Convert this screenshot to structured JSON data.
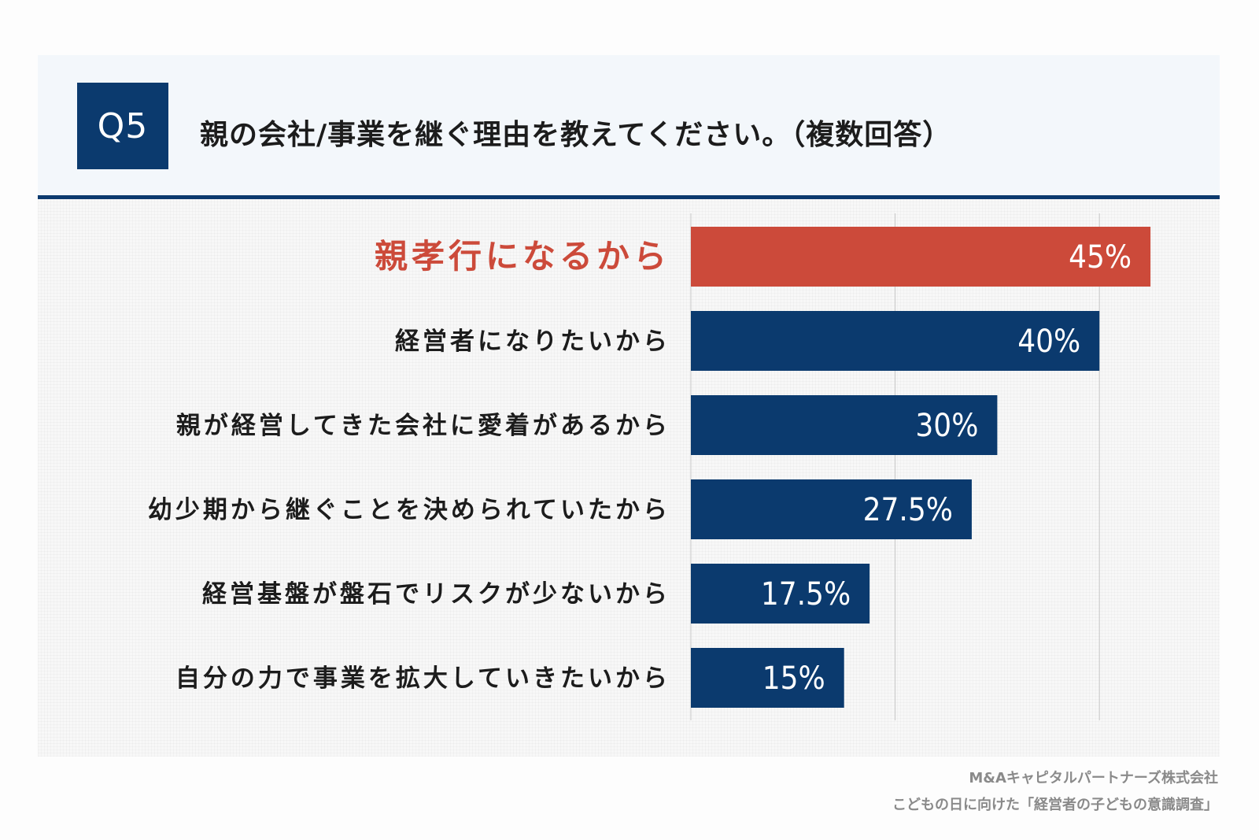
{
  "header": {
    "badge": "Q5",
    "question": "親の会社/事業を継ぐ理由を教えてください。（複数回答）"
  },
  "colors": {
    "navy": "#0b3a6e",
    "highlight": "#cc4a3a",
    "label_text": "#1c1c1c",
    "bar_text": "#ffffff",
    "grid": "#c8c8c8"
  },
  "chart_data": {
    "type": "bar",
    "orientation": "horizontal",
    "categories": [
      "親孝行になるから",
      "経営者になりたいから",
      "親が経営してきた会社に愛着があるから",
      "幼少期から継ぐことを決められていたから",
      "経営基盤が盤石でリスクが少ないから",
      "自分の力で事業を拡大していきたいから"
    ],
    "values": [
      45,
      40,
      30,
      27.5,
      17.5,
      15
    ],
    "value_labels": [
      "45%",
      "40%",
      "30%",
      "27.5%",
      "17.5%",
      "15%"
    ],
    "highlight_index": 0,
    "xlim": [
      0,
      50
    ],
    "gridlines": [
      0,
      20,
      40
    ],
    "grid": true
  },
  "footer": {
    "company": "M&Aキャピタルパートナーズ株式会社",
    "survey": "こどもの日に向けた「経営者の子どもの意識調査」"
  }
}
